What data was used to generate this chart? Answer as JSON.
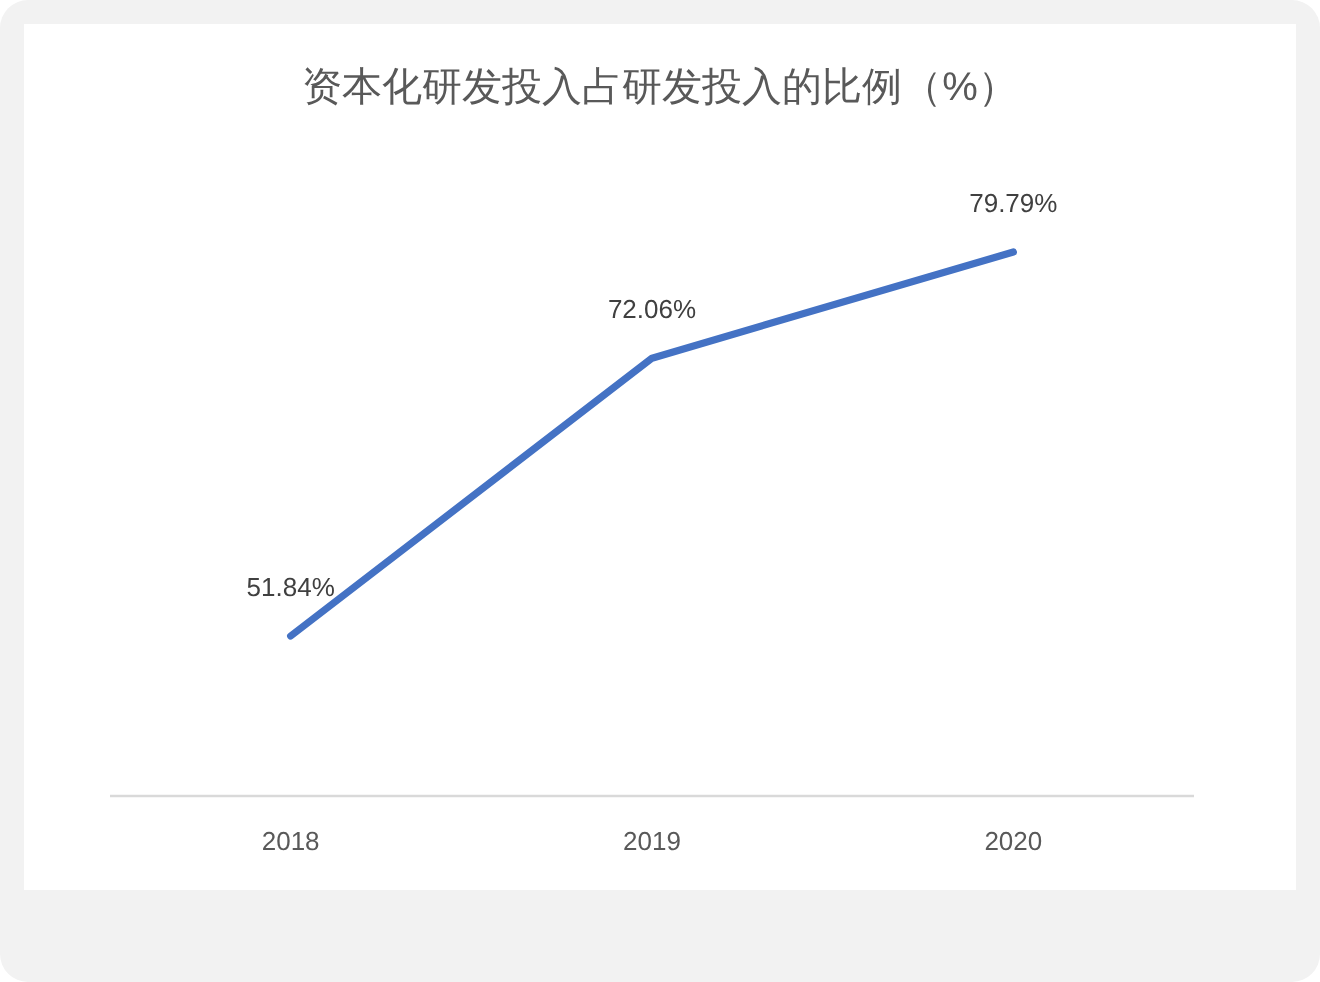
{
  "chart_data": {
    "type": "line",
    "title": "资本化研发投入占研发投入的比例（%）",
    "categories": [
      "2018",
      "2019",
      "2020"
    ],
    "values": [
      51.84,
      72.06,
      79.79
    ],
    "color": "#4472c4",
    "value_labels": [
      "51.84%",
      "72.06%",
      "79.79%"
    ],
    "tick_labels": "x",
    "line_style": "solid",
    "marker": "none"
  }
}
